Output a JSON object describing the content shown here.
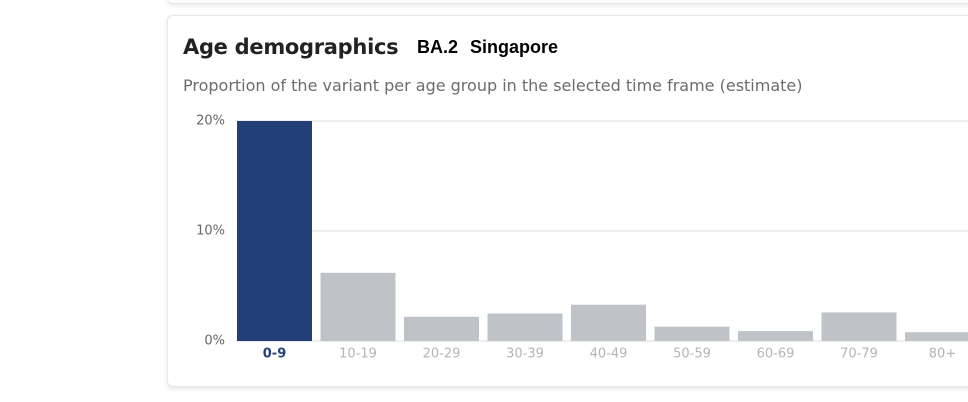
{
  "header": {
    "title": "Age demographics",
    "variant": "BA.2",
    "location": "Singapore",
    "subtitle": "Proportion of the variant per age group in the selected time frame (estimate)"
  },
  "chart_data": {
    "type": "bar",
    "categories": [
      "0-9",
      "10-19",
      "20-29",
      "30-39",
      "40-49",
      "50-59",
      "60-69",
      "70-79",
      "80+"
    ],
    "values": [
      20,
      6.2,
      2.2,
      2.5,
      3.3,
      1.3,
      0.9,
      2.6,
      0.8
    ],
    "colors": [
      "#223f7a",
      "#bfc3c7",
      "#bfc3c7",
      "#bfc3c7",
      "#bfc3c7",
      "#bfc3c7",
      "#bfc3c7",
      "#bfc3c7",
      "#bfc3c7"
    ],
    "highlight_color": "#223f7a",
    "ylim": [
      0,
      20
    ],
    "yticks": [
      {
        "value": 0,
        "label": "0%"
      },
      {
        "value": 10,
        "label": "10%"
      },
      {
        "value": 20,
        "label": "20%"
      }
    ],
    "grid": true
  }
}
